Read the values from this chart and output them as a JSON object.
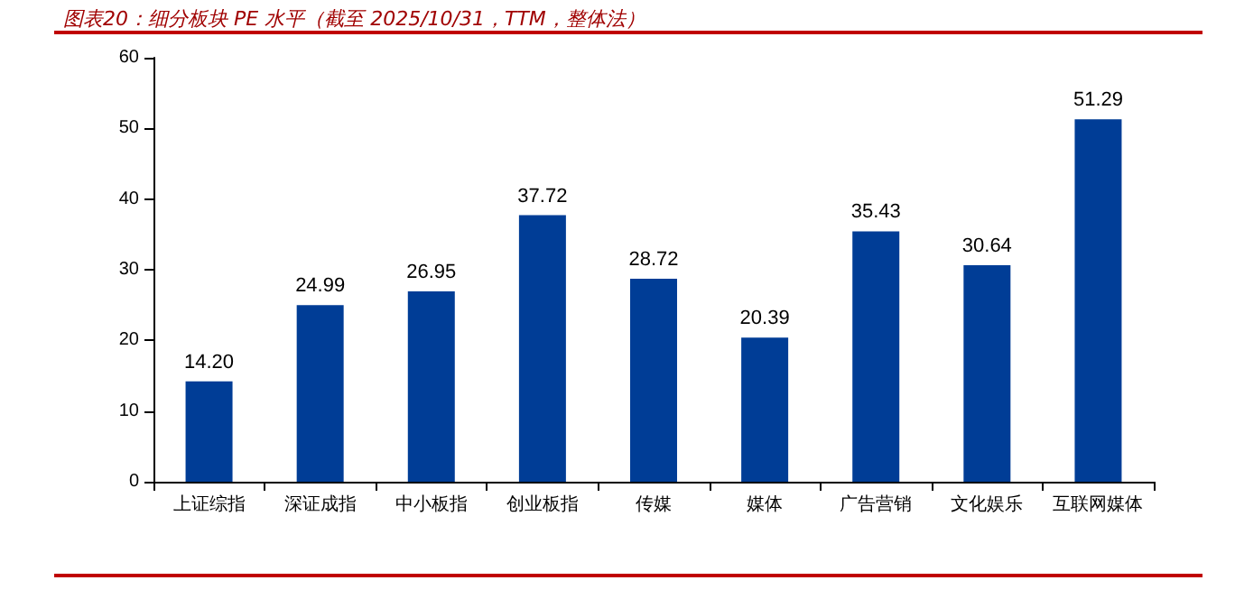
{
  "chart_data": {
    "type": "bar",
    "title": "图表20：细分板块 PE 水平（截至 2025/10/31，TTM，整体法）",
    "categories": [
      "上证综指",
      "深证成指",
      "中小板指",
      "创业板指",
      "传媒",
      "媒体",
      "广告营销",
      "文化娱乐",
      "互联网媒体"
    ],
    "values": [
      14.2,
      24.99,
      26.95,
      37.72,
      28.72,
      20.39,
      35.43,
      30.64,
      51.29
    ],
    "value_labels": [
      "14.20",
      "24.99",
      "26.95",
      "37.72",
      "28.72",
      "20.39",
      "35.43",
      "30.64",
      "51.29"
    ],
    "color": "#003d96",
    "ylim": [
      0,
      60
    ],
    "yticks": [
      0,
      10,
      20,
      30,
      40,
      50,
      60
    ]
  }
}
